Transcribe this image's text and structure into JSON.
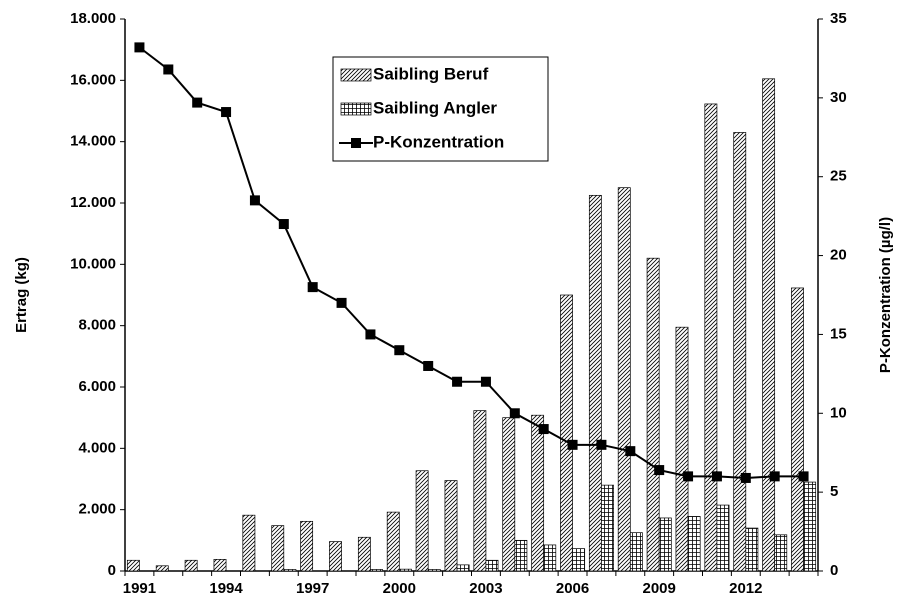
{
  "chart_data": {
    "type": "bar",
    "y_label": "Ertrag (kg)",
    "y2_label": "P-Konzentration (µg/l)",
    "categories": [
      "1991",
      null,
      null,
      "1994",
      null,
      null,
      "1997",
      null,
      null,
      "2000",
      null,
      null,
      "2003",
      null,
      null,
      "2006",
      null,
      null,
      "2009",
      null,
      null,
      "2012",
      null,
      null
    ],
    "series": [
      {
        "name": "Saibling Beruf",
        "type": "bar",
        "color": "#000000",
        "pattern": "diagonal",
        "values": [
          350,
          170,
          350,
          380,
          1820,
          1480,
          1620,
          960,
          1100,
          1920,
          3270,
          2950,
          5230,
          5000,
          5080,
          9000,
          12250,
          12500,
          10200,
          7950,
          15230,
          14300,
          16050,
          9230
        ]
      },
      {
        "name": "Saibling Angler",
        "type": "bar",
        "color": "#000000",
        "pattern": "grid",
        "values": [
          0,
          0,
          0,
          0,
          0,
          50,
          0,
          0,
          50,
          60,
          50,
          200,
          350,
          1000,
          850,
          730,
          2800,
          1250,
          1730,
          1780,
          2150,
          1400,
          1180,
          2900
        ]
      },
      {
        "name": "P-Konzentration",
        "type": "line",
        "axis": "y2",
        "color": "#000000",
        "values": [
          33.2,
          31.8,
          29.7,
          29.1,
          23.5,
          22,
          18,
          17,
          15,
          14,
          13,
          12,
          12,
          10,
          9,
          8,
          8,
          7.6,
          6.4,
          6,
          6,
          5.9,
          6,
          6
        ]
      }
    ],
    "ylim": [
      0,
      18000
    ],
    "yticks": [
      0,
      {
        "value": 2000,
        "label": "2.000"
      },
      {
        "value": 4000,
        "label": "4.000"
      },
      {
        "value": 6000,
        "label": "6.000"
      },
      {
        "value": 8000,
        "label": "8.000"
      },
      {
        "value": 10000,
        "label": "10.000"
      },
      {
        "value": 12000,
        "label": "12.000"
      },
      {
        "value": 14000,
        "label": "14.000"
      },
      {
        "value": 16000,
        "label": "16.000"
      },
      {
        "value": 18000,
        "label": "18.000"
      }
    ],
    "y2lim": [
      0,
      35
    ],
    "y2ticks": [
      0,
      5,
      10,
      15,
      20,
      25,
      30,
      35
    ],
    "grid": false,
    "legend": "top"
  }
}
